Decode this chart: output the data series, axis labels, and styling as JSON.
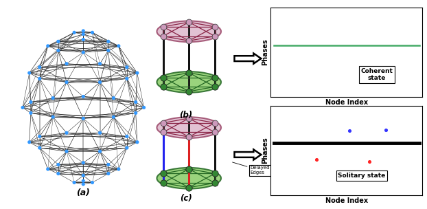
{
  "label_a": "(a)",
  "label_b": "(b)",
  "label_c": "(c)",
  "coherent_label": "Coherent\nstate",
  "solitary_label": "Solitary state",
  "phases_label": "Phases",
  "node_index_label": "Node Index",
  "delayed_edges_label": "Delayed\nEdges",
  "network_node_color": "#3399ff",
  "network_edge_color": "#222222",
  "top_node_color": "#cc99bb",
  "top_fill_color": "#ddb8cc",
  "top_edge_color": "#994466",
  "bottom_node_color": "#338833",
  "bottom_fill_color": "#88cc66",
  "bottom_edge_color": "#226622",
  "vertical_edge_color": "#111111",
  "dark_red_edge_color": "#882244",
  "coherent_line_color": "#44aa66",
  "delayed_red_color": "#dd2222",
  "delayed_blue_color": "#2222ee",
  "dot_blue_color": "#3333ff",
  "dot_red_color": "#ff2222",
  "bg_color": "#ffffff"
}
